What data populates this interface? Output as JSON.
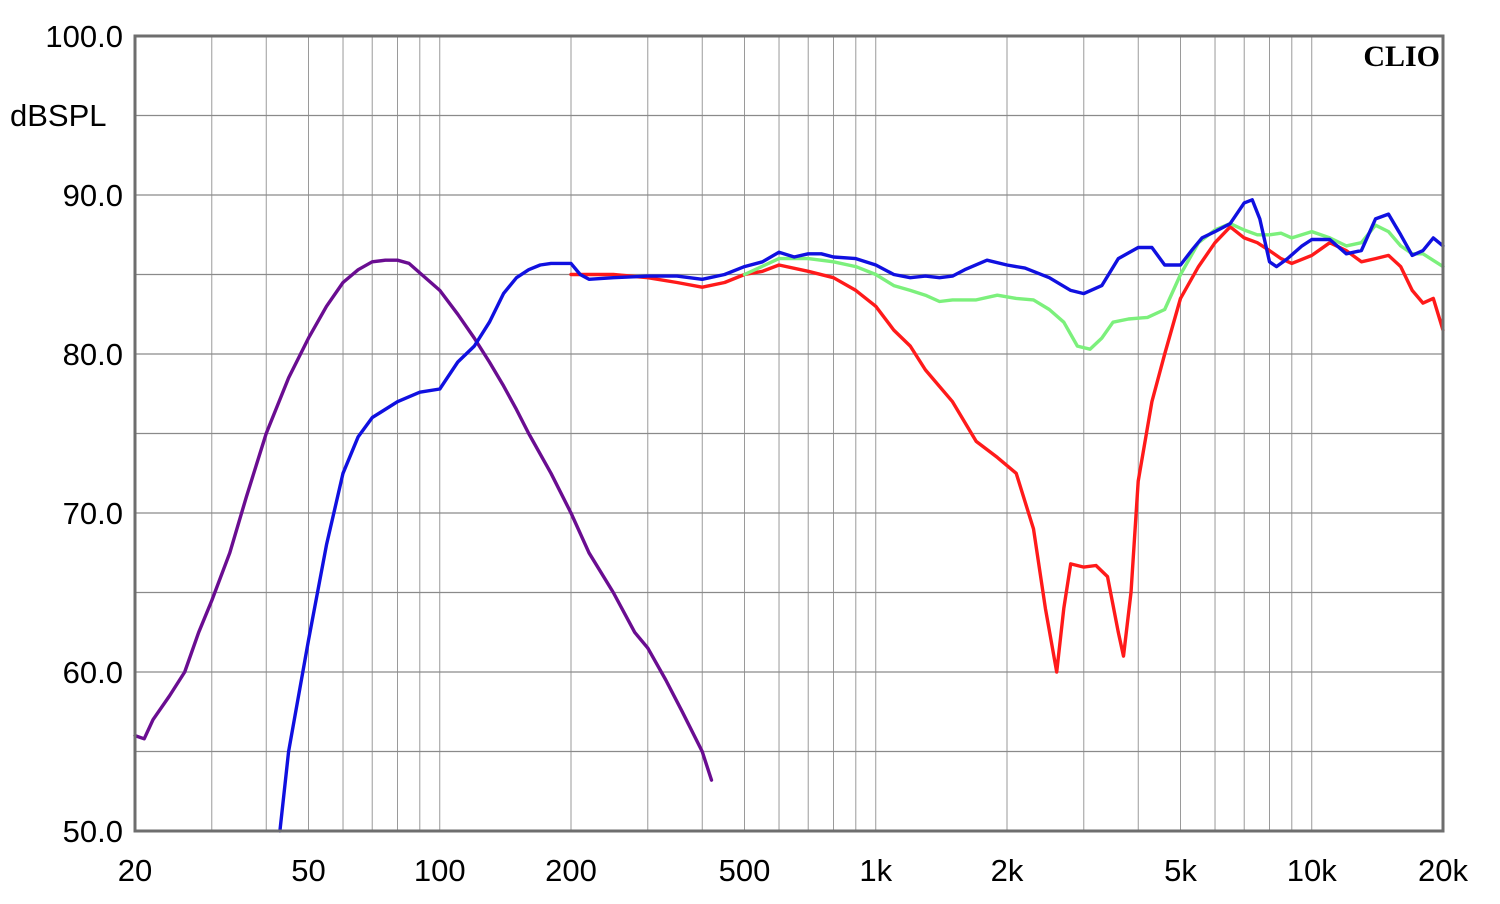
{
  "chart_data": {
    "type": "line",
    "title": "",
    "brand": "CLIO",
    "xlabel": "",
    "ylabel": "dBSPL",
    "x_scale": "log",
    "xlim": [
      20,
      20000
    ],
    "ylim": [
      50,
      100
    ],
    "grid": true,
    "x_ticks": [
      {
        "value": 20,
        "label": "20"
      },
      {
        "value": 50,
        "label": "50"
      },
      {
        "value": 100,
        "label": "100"
      },
      {
        "value": 200,
        "label": "200"
      },
      {
        "value": 500,
        "label": "500"
      },
      {
        "value": 1000,
        "label": "1k"
      },
      {
        "value": 2000,
        "label": "2k"
      },
      {
        "value": 5000,
        "label": "5k"
      },
      {
        "value": 10000,
        "label": "10k"
      },
      {
        "value": 20000,
        "label": "20k"
      }
    ],
    "y_ticks": [
      {
        "value": 50,
        "label": "50.0"
      },
      {
        "value": 60,
        "label": "60.0"
      },
      {
        "value": 70,
        "label": "70.0"
      },
      {
        "value": 80,
        "label": "80.0"
      },
      {
        "value": 90,
        "label": "90.0"
      },
      {
        "value": 100,
        "label": "100.0"
      }
    ],
    "series": [
      {
        "color": "#6a0d91",
        "points": [
          [
            20,
            56
          ],
          [
            21,
            55.8
          ],
          [
            22,
            57
          ],
          [
            24,
            58.5
          ],
          [
            26,
            60
          ],
          [
            28,
            62.5
          ],
          [
            30,
            64.5
          ],
          [
            33,
            67.5
          ],
          [
            36,
            71
          ],
          [
            40,
            75
          ],
          [
            45,
            78.5
          ],
          [
            50,
            81
          ],
          [
            55,
            83
          ],
          [
            60,
            84.5
          ],
          [
            65,
            85.3
          ],
          [
            70,
            85.8
          ],
          [
            75,
            85.9
          ],
          [
            80,
            85.9
          ],
          [
            85,
            85.7
          ],
          [
            90,
            85.1
          ],
          [
            100,
            84
          ],
          [
            110,
            82.5
          ],
          [
            120,
            81
          ],
          [
            130,
            79.5
          ],
          [
            140,
            78
          ],
          [
            150,
            76.5
          ],
          [
            160,
            75
          ],
          [
            180,
            72.5
          ],
          [
            200,
            70
          ],
          [
            220,
            67.5
          ],
          [
            250,
            65
          ],
          [
            280,
            62.5
          ],
          [
            300,
            61.5
          ],
          [
            330,
            59.5
          ],
          [
            360,
            57.5
          ],
          [
            400,
            55
          ],
          [
            420,
            53.2
          ]
        ]
      },
      {
        "color": "#ff1a1a",
        "points": [
          [
            200,
            85
          ],
          [
            250,
            85
          ],
          [
            300,
            84.8
          ],
          [
            350,
            84.5
          ],
          [
            400,
            84.2
          ],
          [
            450,
            84.5
          ],
          [
            500,
            85
          ],
          [
            550,
            85.2
          ],
          [
            600,
            85.6
          ],
          [
            700,
            85.2
          ],
          [
            800,
            84.8
          ],
          [
            900,
            84
          ],
          [
            1000,
            83
          ],
          [
            1100,
            81.5
          ],
          [
            1200,
            80.5
          ],
          [
            1300,
            79
          ],
          [
            1500,
            77
          ],
          [
            1700,
            74.5
          ],
          [
            1900,
            73.5
          ],
          [
            2100,
            72.5
          ],
          [
            2300,
            69
          ],
          [
            2450,
            64
          ],
          [
            2600,
            60
          ],
          [
            2700,
            64
          ],
          [
            2800,
            66.8
          ],
          [
            3000,
            66.6
          ],
          [
            3200,
            66.7
          ],
          [
            3400,
            66
          ],
          [
            3600,
            62.5
          ],
          [
            3700,
            61
          ],
          [
            3850,
            65
          ],
          [
            4000,
            72
          ],
          [
            4300,
            77
          ],
          [
            4600,
            80
          ],
          [
            5000,
            83.5
          ],
          [
            5500,
            85.5
          ],
          [
            6000,
            87
          ],
          [
            6500,
            88
          ],
          [
            7000,
            87.3
          ],
          [
            7500,
            87
          ],
          [
            8000,
            86.5
          ],
          [
            8500,
            86
          ],
          [
            9000,
            85.7
          ],
          [
            10000,
            86.2
          ],
          [
            11000,
            87
          ],
          [
            12000,
            86.5
          ],
          [
            13000,
            85.8
          ],
          [
            14000,
            86
          ],
          [
            15000,
            86.2
          ],
          [
            16000,
            85.5
          ],
          [
            17000,
            84
          ],
          [
            18000,
            83.2
          ],
          [
            19000,
            83.5
          ],
          [
            20000,
            81.5
          ]
        ]
      },
      {
        "color": "#7cf07c",
        "points": [
          [
            500,
            85
          ],
          [
            600,
            86
          ],
          [
            700,
            86
          ],
          [
            800,
            85.8
          ],
          [
            900,
            85.5
          ],
          [
            1000,
            85
          ],
          [
            1100,
            84.3
          ],
          [
            1200,
            84
          ],
          [
            1300,
            83.7
          ],
          [
            1400,
            83.3
          ],
          [
            1500,
            83.4
          ],
          [
            1700,
            83.4
          ],
          [
            1900,
            83.7
          ],
          [
            2100,
            83.5
          ],
          [
            2300,
            83.4
          ],
          [
            2500,
            82.8
          ],
          [
            2700,
            82
          ],
          [
            2900,
            80.5
          ],
          [
            3100,
            80.3
          ],
          [
            3300,
            81
          ],
          [
            3500,
            82
          ],
          [
            3800,
            82.2
          ],
          [
            4200,
            82.3
          ],
          [
            4600,
            82.8
          ],
          [
            5000,
            85
          ],
          [
            5500,
            87
          ],
          [
            6000,
            87.8
          ],
          [
            6500,
            88.2
          ],
          [
            7000,
            87.8
          ],
          [
            7500,
            87.5
          ],
          [
            8000,
            87.5
          ],
          [
            8500,
            87.6
          ],
          [
            9000,
            87.3
          ],
          [
            10000,
            87.7
          ],
          [
            11000,
            87.3
          ],
          [
            12000,
            86.8
          ],
          [
            13000,
            87
          ],
          [
            14000,
            88.1
          ],
          [
            15000,
            87.7
          ],
          [
            16000,
            86.8
          ],
          [
            17000,
            86.3
          ],
          [
            18000,
            86.3
          ],
          [
            20000,
            85.5
          ]
        ]
      },
      {
        "color": "#1010e0",
        "points": [
          [
            43,
            50
          ],
          [
            45,
            55
          ],
          [
            50,
            62
          ],
          [
            55,
            68
          ],
          [
            60,
            72.5
          ],
          [
            65,
            74.8
          ],
          [
            70,
            76
          ],
          [
            80,
            77
          ],
          [
            90,
            77.6
          ],
          [
            100,
            77.8
          ],
          [
            110,
            79.5
          ],
          [
            120,
            80.5
          ],
          [
            130,
            82
          ],
          [
            140,
            83.8
          ],
          [
            150,
            84.8
          ],
          [
            160,
            85.3
          ],
          [
            170,
            85.6
          ],
          [
            180,
            85.7
          ],
          [
            200,
            85.7
          ],
          [
            210,
            85
          ],
          [
            220,
            84.7
          ],
          [
            250,
            84.8
          ],
          [
            300,
            84.9
          ],
          [
            350,
            84.9
          ],
          [
            400,
            84.7
          ],
          [
            450,
            85
          ],
          [
            500,
            85.5
          ],
          [
            550,
            85.8
          ],
          [
            600,
            86.4
          ],
          [
            650,
            86.1
          ],
          [
            700,
            86.3
          ],
          [
            750,
            86.3
          ],
          [
            800,
            86.1
          ],
          [
            900,
            86
          ],
          [
            1000,
            85.6
          ],
          [
            1100,
            85
          ],
          [
            1200,
            84.8
          ],
          [
            1300,
            84.9
          ],
          [
            1400,
            84.8
          ],
          [
            1500,
            84.9
          ],
          [
            1600,
            85.3
          ],
          [
            1800,
            85.9
          ],
          [
            2000,
            85.6
          ],
          [
            2200,
            85.4
          ],
          [
            2500,
            84.8
          ],
          [
            2800,
            84
          ],
          [
            3000,
            83.8
          ],
          [
            3300,
            84.3
          ],
          [
            3600,
            86
          ],
          [
            4000,
            86.7
          ],
          [
            4300,
            86.7
          ],
          [
            4600,
            85.6
          ],
          [
            5000,
            85.6
          ],
          [
            5300,
            86.5
          ],
          [
            5600,
            87.3
          ],
          [
            6000,
            87.7
          ],
          [
            6500,
            88.2
          ],
          [
            7000,
            89.5
          ],
          [
            7300,
            89.7
          ],
          [
            7600,
            88.5
          ],
          [
            8000,
            85.8
          ],
          [
            8300,
            85.5
          ],
          [
            8800,
            86
          ],
          [
            9500,
            86.8
          ],
          [
            10000,
            87.2
          ],
          [
            11000,
            87.2
          ],
          [
            12000,
            86.3
          ],
          [
            13000,
            86.5
          ],
          [
            14000,
            88.5
          ],
          [
            15000,
            88.8
          ],
          [
            16000,
            87.5
          ],
          [
            17000,
            86.2
          ],
          [
            18000,
            86.5
          ],
          [
            19000,
            87.3
          ],
          [
            20000,
            86.8
          ]
        ]
      }
    ]
  }
}
